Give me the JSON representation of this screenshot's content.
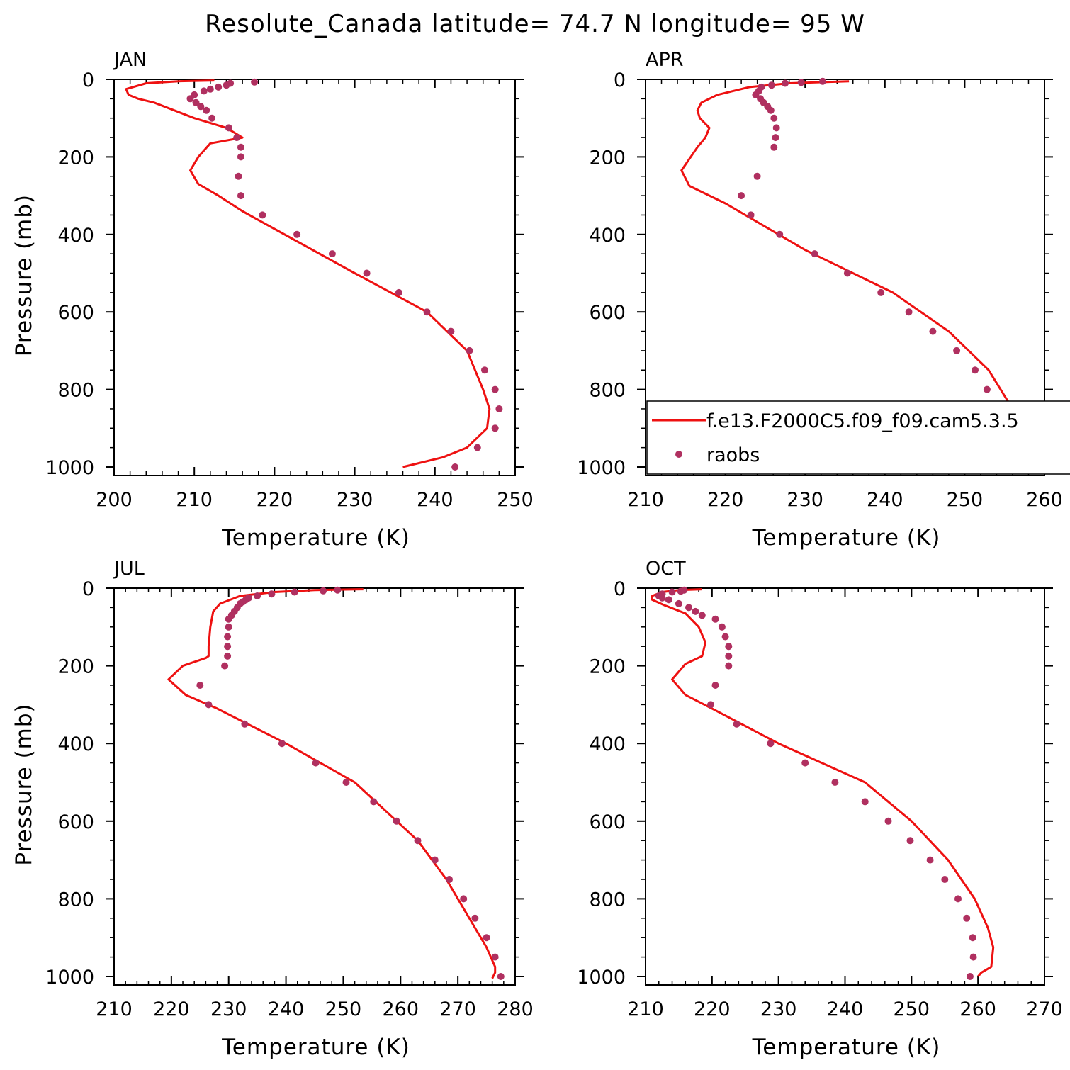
{
  "title": "Resolute_Canada  latitude= 74.7 N longitude= 95 W",
  "colors": {
    "model_line": "#ee1111",
    "obs_points": "#b03060"
  },
  "legend": {
    "model": "f.e13.F2000C5.f09_f09.cam5.3.5",
    "obs": "raobs"
  },
  "chart_data": [
    {
      "type": "scatter",
      "panel": "JAN",
      "xlabel": "Temperature (K)",
      "ylabel": "Pressure (mb)",
      "xlim": [
        200,
        250
      ],
      "ylim": [
        1000,
        0
      ],
      "xticks": [
        200,
        210,
        220,
        230,
        240,
        250
      ],
      "yticks": [
        0,
        200,
        400,
        600,
        800,
        1000
      ],
      "series": [
        {
          "name": "f.e13.F2000C5.f09_f09.cam5.3.5",
          "kind": "line",
          "x": [
            212.5,
            208,
            204,
            201.5,
            201.8,
            203,
            205,
            210,
            214,
            216,
            212,
            210.5,
            209.5,
            210.5,
            213,
            216,
            230,
            239,
            244,
            246,
            246.8,
            246.5,
            244,
            241,
            236
          ],
          "y": [
            3,
            5,
            10,
            25,
            40,
            50,
            60,
            100,
            125,
            150,
            165,
            200,
            235,
            270,
            300,
            340,
            500,
            600,
            700,
            800,
            850,
            900,
            950,
            975,
            1000
          ]
        },
        {
          "name": "raobs",
          "kind": "points",
          "x": [
            217.5,
            214.5,
            214,
            213,
            212,
            211.2,
            210,
            209.5,
            210.2,
            210.8,
            211.5,
            212.2,
            214.3,
            215.3,
            215.8,
            215.8,
            215.5,
            215.8,
            218.5,
            222.8,
            227.2,
            231.5,
            235.5,
            239,
            242,
            244.3,
            246.2,
            247.5,
            248,
            247.5,
            245.3,
            242.5
          ],
          "y": [
            7,
            10,
            15,
            20,
            25,
            30,
            40,
            50,
            60,
            70,
            80,
            100,
            125,
            150,
            175,
            200,
            250,
            300,
            350,
            400,
            450,
            500,
            550,
            600,
            650,
            700,
            750,
            800,
            850,
            900,
            950,
            1000
          ]
        }
      ]
    },
    {
      "type": "scatter",
      "panel": "APR",
      "xlabel": "Temperature (K)",
      "ylabel": "",
      "xlim": [
        210,
        260
      ],
      "ylim": [
        1000,
        0
      ],
      "xticks": [
        210,
        220,
        230,
        240,
        250,
        260
      ],
      "yticks": [
        0,
        200,
        400,
        600,
        800,
        1000
      ],
      "series": [
        {
          "name": "f.e13.F2000C5.f09_f09.cam5.3.5",
          "kind": "line",
          "x": [
            235.5,
            228,
            223,
            219,
            217,
            216.5,
            216.8,
            218,
            217.5,
            216.5,
            214.5,
            215.5,
            220,
            230,
            241,
            248,
            253,
            256,
            257,
            256.8,
            255,
            252,
            251
          ],
          "y": [
            5,
            10,
            20,
            40,
            60,
            80,
            100,
            125,
            150,
            175,
            235,
            275,
            320,
            440,
            550,
            650,
            750,
            850,
            900,
            925,
            950,
            985,
            1005
          ]
        },
        {
          "name": "raobs",
          "kind": "points",
          "x": [
            232.2,
            229.5,
            227.5,
            225.8,
            224.5,
            224.2,
            223.8,
            224.4,
            224.8,
            225.3,
            225.7,
            226.1,
            226.4,
            226.3,
            226.1,
            224.0,
            222.0,
            223.2,
            226.8,
            231.2,
            235.3,
            239.5,
            243.0,
            246.0,
            249.0,
            251.3,
            252.8,
            253.8,
            253.8,
            253.0,
            251.0
          ],
          "y": [
            5,
            8,
            10,
            15,
            20,
            30,
            40,
            50,
            60,
            70,
            80,
            100,
            125,
            150,
            175,
            250,
            300,
            350,
            400,
            450,
            500,
            550,
            600,
            650,
            700,
            750,
            800,
            850,
            900,
            950,
            1000
          ]
        }
      ]
    },
    {
      "type": "scatter",
      "panel": "JUL",
      "xlabel": "Temperature (K)",
      "ylabel": "Pressure (mb)",
      "xlim": [
        210,
        280
      ],
      "ylim": [
        1000,
        0
      ],
      "xticks": [
        210,
        220,
        230,
        240,
        250,
        260,
        270,
        280
      ],
      "yticks": [
        0,
        200,
        400,
        600,
        800,
        1000
      ],
      "series": [
        {
          "name": "f.e13.F2000C5.f09_f09.cam5.3.5",
          "kind": "line",
          "x": [
            253.5,
            245,
            238,
            232,
            228.5,
            227.3,
            226.8,
            226.5,
            226.5,
            226.0,
            222.0,
            219.5,
            222.5,
            228.0,
            240.0,
            252.0,
            263.0,
            268.0,
            272.0,
            275.0,
            276.5,
            276.5,
            276.0
          ],
          "y": [
            3,
            5,
            10,
            20,
            40,
            60,
            100,
            150,
            175,
            180,
            200,
            235,
            275,
            310,
            400,
            500,
            650,
            750,
            850,
            925,
            975,
            990,
            1005
          ]
        },
        {
          "name": "raobs",
          "kind": "points",
          "x": [
            249.0,
            246.5,
            241.5,
            237.5,
            235.0,
            233.5,
            233.0,
            232.5,
            232.0,
            231.5,
            231.0,
            230.5,
            230.0,
            230.0,
            229.8,
            229.8,
            229.8,
            229.3,
            225.0,
            226.5,
            232.8,
            239.3,
            245.2,
            250.5,
            255.3,
            259.3,
            263.0,
            266.0,
            268.5,
            271.0,
            273.0,
            275.0,
            276.5,
            277.5
          ],
          "y": [
            5,
            7,
            10,
            15,
            20,
            25,
            30,
            35,
            40,
            50,
            60,
            70,
            80,
            100,
            125,
            150,
            175,
            200,
            250,
            300,
            350,
            400,
            450,
            500,
            550,
            600,
            650,
            700,
            750,
            800,
            850,
            900,
            950,
            1000
          ]
        }
      ]
    },
    {
      "type": "scatter",
      "panel": "OCT",
      "xlabel": "Temperature (K)",
      "ylabel": "",
      "xlim": [
        210,
        270
      ],
      "ylim": [
        1000,
        0
      ],
      "xticks": [
        210,
        220,
        230,
        240,
        250,
        260,
        270
      ],
      "yticks": [
        0,
        200,
        400,
        600,
        800,
        1000
      ],
      "series": [
        {
          "name": "f.e13.F2000C5.f09_f09.cam5.3.5",
          "kind": "line",
          "x": [
            218.5,
            215,
            212.5,
            211.0,
            211.0,
            213.0,
            216.0,
            218.0,
            219.0,
            218.5,
            216.0,
            214.0,
            216.0,
            220.0,
            230.0,
            243.0,
            250.0,
            255.5,
            259.5,
            261.5,
            262.3,
            262.0,
            260.5,
            260.0
          ],
          "y": [
            3,
            5,
            10,
            20,
            30,
            45,
            65,
            100,
            140,
            175,
            195,
            235,
            275,
            310,
            400,
            500,
            600,
            700,
            800,
            875,
            925,
            975,
            990,
            1000
          ]
        },
        {
          "name": "raobs",
          "kind": "points",
          "x": [
            215.8,
            215.3,
            214.0,
            212.5,
            212.0,
            212.5,
            213.5,
            215.0,
            216.5,
            217.5,
            218.5,
            220.5,
            221.5,
            222.0,
            222.5,
            222.5,
            222.5,
            220.5,
            219.8,
            223.7,
            228.8,
            234.0,
            238.5,
            243.0,
            246.5,
            249.8,
            252.8,
            255.0,
            257.0,
            258.3,
            259.2,
            259.3,
            258.8
          ],
          "y": [
            5,
            8,
            10,
            15,
            20,
            25,
            30,
            40,
            50,
            60,
            70,
            80,
            100,
            125,
            150,
            175,
            200,
            250,
            300,
            350,
            400,
            450,
            500,
            550,
            600,
            650,
            700,
            750,
            800,
            850,
            900,
            950,
            1000
          ]
        }
      ]
    }
  ]
}
